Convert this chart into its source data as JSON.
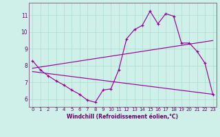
{
  "bg_color": "#cef0e8",
  "line_color": "#990099",
  "grid_color": "#aaddcc",
  "xlabel": "Windchill (Refroidissement éolien,°C)",
  "xlim": [
    -0.5,
    23.5
  ],
  "ylim": [
    5.55,
    11.75
  ],
  "yticks": [
    6,
    7,
    8,
    9,
    10,
    11
  ],
  "xticks": [
    0,
    1,
    2,
    3,
    4,
    5,
    6,
    7,
    8,
    9,
    10,
    11,
    12,
    13,
    14,
    15,
    16,
    17,
    18,
    19,
    20,
    21,
    22,
    23
  ],
  "curve1_x": [
    0,
    1,
    2,
    3,
    4,
    5,
    6,
    7,
    8,
    9,
    10,
    11,
    12,
    13,
    14,
    15,
    16,
    17,
    18,
    19,
    20,
    21,
    22,
    23
  ],
  "curve1_y": [
    8.3,
    7.75,
    7.4,
    7.1,
    6.85,
    6.55,
    6.3,
    5.95,
    5.82,
    6.55,
    6.62,
    7.75,
    9.6,
    10.15,
    10.4,
    11.25,
    10.5,
    11.1,
    10.95,
    9.35,
    9.35,
    8.85,
    8.15,
    6.3
  ],
  "line2_x": [
    0,
    23
  ],
  "line2_y": [
    7.85,
    9.5
  ],
  "line3_x": [
    0,
    23
  ],
  "line3_y": [
    7.65,
    6.3
  ],
  "spine_color": "#886688",
  "tick_label_color": "#660066",
  "xlabel_color": "#660066"
}
